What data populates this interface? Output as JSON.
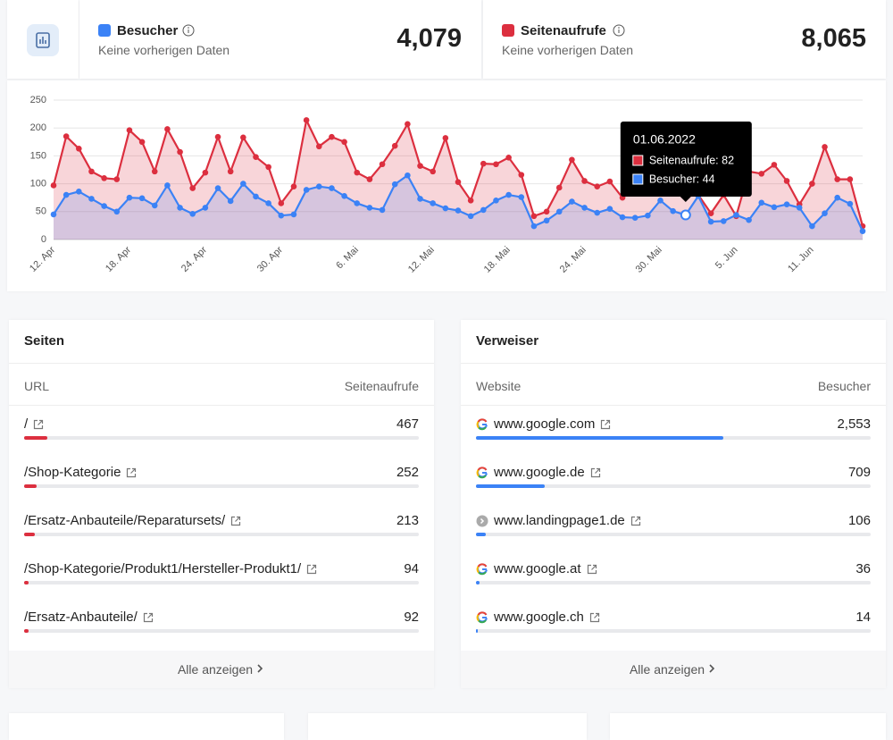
{
  "stats": [
    {
      "label": "Besucher",
      "note": "Keine vorherigen Daten",
      "value": 4079,
      "value_label": "4,079",
      "color": "#3b82f6"
    },
    {
      "label": "Seitenaufrufe",
      "note": "Keine vorherigen Daten",
      "value": 8065,
      "value_label": "8,065",
      "color": "#dc2f3f"
    }
  ],
  "chart_data": {
    "type": "area",
    "categories": [
      "12. Apr",
      null,
      null,
      null,
      null,
      null,
      "18. Apr",
      null,
      null,
      null,
      null,
      null,
      "24. Apr",
      null,
      null,
      null,
      null,
      null,
      "30. Apr",
      null,
      null,
      null,
      null,
      null,
      "6. Mai",
      null,
      null,
      null,
      null,
      null,
      "12. Mai",
      null,
      null,
      null,
      null,
      null,
      "18. Mai",
      null,
      null,
      null,
      null,
      null,
      "24. Mai",
      null,
      null,
      null,
      null,
      null,
      "30. Mai",
      null,
      null,
      null,
      null,
      null,
      "5. Jun",
      null,
      null,
      null,
      null,
      null,
      "11. Jun",
      null,
      null,
      null,
      null
    ],
    "series": [
      {
        "name": "Seitenaufrufe",
        "color": "#dc2f3f",
        "values": [
          97,
          185,
          163,
          122,
          110,
          108,
          196,
          175,
          122,
          198,
          157,
          92,
          120,
          184,
          122,
          183,
          148,
          130,
          65,
          95,
          214,
          167,
          184,
          175,
          120,
          108,
          135,
          168,
          207,
          132,
          122,
          182,
          103,
          70,
          136,
          135,
          147,
          116,
          42,
          50,
          93,
          143,
          105,
          95,
          104,
          75,
          90,
          100,
          95,
          110,
          82,
          80,
          47,
          80,
          42,
          122,
          118,
          134,
          105,
          63,
          100,
          166,
          108,
          108,
          24
        ]
      },
      {
        "name": "Besucher",
        "color": "#3b82f6",
        "values": [
          45,
          80,
          86,
          73,
          60,
          50,
          75,
          74,
          61,
          97,
          57,
          46,
          57,
          92,
          69,
          100,
          77,
          65,
          43,
          45,
          89,
          95,
          92,
          78,
          65,
          57,
          53,
          99,
          115,
          73,
          65,
          56,
          52,
          42,
          53,
          70,
          80,
          76,
          24,
          34,
          50,
          68,
          57,
          48,
          55,
          40,
          39,
          43,
          70,
          51,
          44,
          78,
          32,
          33,
          44,
          35,
          66,
          58,
          63,
          57,
          24,
          47,
          75,
          64,
          15
        ]
      }
    ],
    "ylim": [
      0,
      250
    ],
    "yticks": [
      0,
      50,
      100,
      150,
      200,
      250
    ],
    "grid": true,
    "tooltip": {
      "index": 50,
      "title": "01.06.2022",
      "lines": [
        "Seitenaufrufe: 82",
        "Besucher: 44"
      ]
    }
  },
  "pages": {
    "title": "Seiten",
    "columns": [
      "URL",
      "Seitenaufrufe"
    ],
    "rows": [
      {
        "label": "/",
        "value": 467
      },
      {
        "label": "/Shop-Kategorie",
        "value": 252
      },
      {
        "label": "/Ersatz-Anbauteile/Reparatursets/",
        "value": 213
      },
      {
        "label": "/Shop-Kategorie/Produkt1/Hersteller-Produkt1/",
        "value": 94
      },
      {
        "label": "/Ersatz-Anbauteile/",
        "value": 92
      }
    ],
    "footer": "Alle anzeigen"
  },
  "referrers": {
    "title": "Verweiser",
    "columns": [
      "Website",
      "Besucher"
    ],
    "rows": [
      {
        "label": "www.google.com",
        "value": 2553,
        "value_label": "2,553",
        "icon": "google"
      },
      {
        "label": "www.google.de",
        "value": 709,
        "icon": "google"
      },
      {
        "label": "www.landingpage1.de",
        "value": 106,
        "icon": "link"
      },
      {
        "label": "www.google.at",
        "value": 36,
        "icon": "google"
      },
      {
        "label": "www.google.ch",
        "value": 14,
        "icon": "google"
      }
    ],
    "footer": "Alle anzeigen"
  }
}
